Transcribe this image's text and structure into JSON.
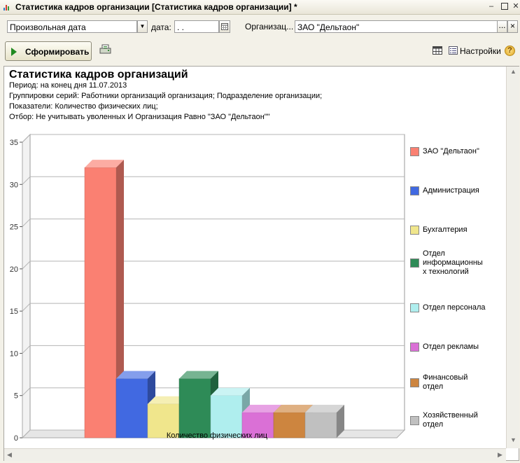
{
  "window": {
    "title": "Статистика кадров организации [Статистика кадров организации] *",
    "minimize": "–",
    "close": "✕"
  },
  "params": {
    "period_mode": "Произвольная дата",
    "date_label": "дата:",
    "date_value": " .  .",
    "org_label": "Организац...",
    "org_value": "ЗАО \"Дельтаон\"",
    "org_select": "...",
    "org_clear": "×"
  },
  "toolbar": {
    "generate_label": "Сформировать",
    "settings_label": "Настройки",
    "help": "?"
  },
  "report": {
    "title": "Статистика кадров организаций",
    "period": "Период: на конец дня 11.07.2013",
    "grouping": "Группировки серий: Работники организаций организация; Подразделение организации;",
    "indicators": "Показатели: Количество физических лиц;",
    "filter": "Отбор: Не учитывать уволенных И Организация Равно \"ЗАО \"Дельтаон\"\""
  },
  "chart_data": {
    "type": "bar",
    "categories": [
      "Количество физических лиц"
    ],
    "series": [
      {
        "name": "ЗАО \"Дельтаон\"",
        "values": [
          32
        ],
        "color": "#fa8072"
      },
      {
        "name": "Администрация",
        "values": [
          7
        ],
        "color": "#4169e1"
      },
      {
        "name": "Бухгалтерия",
        "values": [
          4
        ],
        "color": "#f0e68c"
      },
      {
        "name": "Отдел информационных технологий",
        "values": [
          7
        ],
        "color": "#2e8b57"
      },
      {
        "name": "Отдел персонала",
        "values": [
          5
        ],
        "color": "#afeeee"
      },
      {
        "name": "Отдел рекламы",
        "values": [
          3
        ],
        "color": "#da70d6"
      },
      {
        "name": "Финансовый отдел",
        "values": [
          3
        ],
        "color": "#cd853f"
      },
      {
        "name": "Хозяйственный отдел",
        "values": [
          3
        ],
        "color": "#c0c0c0"
      }
    ],
    "legend_lines": [
      [
        "ЗАО \"Дельтаон\""
      ],
      [
        "Администрация"
      ],
      [
        "Бухгалтерия"
      ],
      [
        "Отдел",
        "информационны",
        "х технологий"
      ],
      [
        "Отдел персонала"
      ],
      [
        "Отдел рекламы"
      ],
      [
        "Финансовый",
        "отдел"
      ],
      [
        "Хозяйственный",
        "отдел"
      ]
    ],
    "yticks": [
      "0",
      "5",
      "10",
      "15",
      "20",
      "25",
      "30",
      "35"
    ],
    "ylim": [
      0,
      35
    ],
    "xlabel": "Количество физических лиц",
    "grid": true,
    "legend": "right"
  }
}
